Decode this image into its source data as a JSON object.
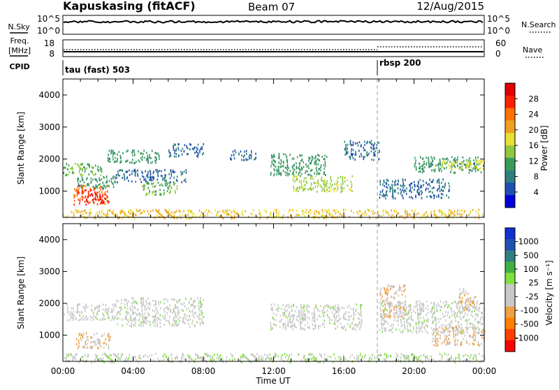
{
  "header": {
    "station": "Kapuskasing (fitACF)",
    "beam": "Beam 07",
    "date": "12/Aug/2015"
  },
  "strips": {
    "nsky_label": "N.Sky",
    "nsky_ticks": [
      "10^5",
      "10^0"
    ],
    "nsearch_label": "N.Search",
    "nsearch_ticks": [
      "10^5",
      "10^0"
    ],
    "freq_label_line1": "Freq.",
    "freq_label_line2": "[MHz]",
    "freq_ticks": [
      "18",
      "8"
    ],
    "nave_label": "Nave",
    "nave_ticks": [
      "60",
      "0"
    ],
    "cpid_label": "CPID",
    "cpid_programs": [
      {
        "name": "tau (fast) 503",
        "start_hour": 0
      },
      {
        "name": "rbsp 200",
        "start_hour": 18
      }
    ]
  },
  "x_axis": {
    "label": "Time UT",
    "ticks": [
      "00:00",
      "04:00",
      "08:00",
      "12:00",
      "16:00",
      "20:00",
      "00:00"
    ],
    "hour_range": [
      0,
      24
    ]
  },
  "chart_data": [
    {
      "type": "heatmap",
      "title": "",
      "xlabel": "Time UT",
      "ylabel": "Slant Range [km]",
      "ylim": [
        180,
        4500
      ],
      "yticks": [
        "1000",
        "2000",
        "3000",
        "4000"
      ],
      "colorbar": {
        "label": "Power [dB]",
        "ticks": [
          "28",
          "24",
          "20",
          "16",
          "12",
          "8",
          "4"
        ],
        "range": [
          0,
          30
        ],
        "colors": [
          "#0000dd",
          "#1f4fb0",
          "#2f7f7f",
          "#3b9b5a",
          "#8fc840",
          "#e8e030",
          "#f0a020",
          "#ff7000",
          "#ff2000",
          "#e00000"
        ]
      },
      "echo_regions": [
        {
          "t0": 0.0,
          "t1": 2.2,
          "r0": 1500,
          "r1": 1900,
          "value": 12
        },
        {
          "t0": 0.6,
          "t1": 2.6,
          "r0": 600,
          "r1": 1200,
          "value": 24
        },
        {
          "t0": 1.2,
          "t1": 2.5,
          "r0": 650,
          "r1": 950,
          "value": 28
        },
        {
          "t0": 0.8,
          "t1": 3.0,
          "r0": 1100,
          "r1": 1500,
          "value": 10
        },
        {
          "t0": 2.5,
          "t1": 5.5,
          "r0": 1900,
          "r1": 2300,
          "value": 10
        },
        {
          "t0": 3.0,
          "t1": 7.0,
          "r0": 1300,
          "r1": 1700,
          "value": 6
        },
        {
          "t0": 4.5,
          "t1": 6.5,
          "r0": 900,
          "r1": 1300,
          "value": 12
        },
        {
          "t0": 6.0,
          "t1": 8.0,
          "r0": 2100,
          "r1": 2500,
          "value": 6
        },
        {
          "t0": 9.5,
          "t1": 11.0,
          "r0": 2000,
          "r1": 2300,
          "value": 6
        },
        {
          "t0": 11.8,
          "t1": 15.0,
          "r0": 1500,
          "r1": 2200,
          "value": 10
        },
        {
          "t0": 13.0,
          "t1": 16.5,
          "r0": 1000,
          "r1": 1500,
          "value": 14
        },
        {
          "t0": 16.0,
          "t1": 18.0,
          "r0": 2000,
          "r1": 2600,
          "value": 6
        },
        {
          "t0": 18.0,
          "t1": 22.0,
          "r0": 800,
          "r1": 1400,
          "value": 6
        },
        {
          "t0": 20.0,
          "t1": 24.0,
          "r0": 1600,
          "r1": 2100,
          "value": 10
        },
        {
          "t0": 21.5,
          "t1": 24.0,
          "r0": 1700,
          "r1": 2000,
          "value": 16
        },
        {
          "t0": 0.0,
          "t1": 24.0,
          "r0": 180,
          "r1": 450,
          "value": 18
        }
      ]
    },
    {
      "type": "heatmap",
      "title": "",
      "xlabel": "Time UT",
      "ylabel": "Slant Range [km]",
      "ylim": [
        180,
        4500
      ],
      "yticks": [
        "1000",
        "2000",
        "3000",
        "4000"
      ],
      "colorbar": {
        "label": "Velocity [m s⁻¹]",
        "ticks": [
          "1000",
          "500",
          "100",
          "25",
          "-25",
          "-100",
          "-500",
          "-1000"
        ],
        "range": [
          -1200,
          1200
        ],
        "colors": [
          "#ff0000",
          "#ff4000",
          "#ff8000",
          "#f0a040",
          "#c8c8c8",
          "#c8c8c8",
          "#80e040",
          "#40b040",
          "#2f7f7f",
          "#2050b0",
          "#1030d0"
        ]
      },
      "echo_regions": [
        {
          "t0": 0.0,
          "t1": 3.0,
          "r0": 1500,
          "r1": 2000,
          "value": 0
        },
        {
          "t0": 0.7,
          "t1": 2.7,
          "r0": 600,
          "r1": 1100,
          "value": -300
        },
        {
          "t0": 3.0,
          "t1": 8.0,
          "r0": 1300,
          "r1": 2200,
          "value": 0
        },
        {
          "t0": 11.8,
          "t1": 17.0,
          "r0": 1200,
          "r1": 2000,
          "value": 0
        },
        {
          "t0": 18.0,
          "t1": 24.0,
          "r0": 1100,
          "r1": 2100,
          "value": 0
        },
        {
          "t0": 18.0,
          "t1": 19.5,
          "r0": 1600,
          "r1": 2600,
          "value": -300
        },
        {
          "t0": 21.0,
          "t1": 24.0,
          "r0": 700,
          "r1": 1300,
          "value": -300
        },
        {
          "t0": 22.5,
          "t1": 23.5,
          "r0": 1800,
          "r1": 2500,
          "value": -300
        },
        {
          "t0": 0.0,
          "t1": 24.0,
          "r0": 180,
          "r1": 450,
          "value": 80
        }
      ]
    }
  ]
}
